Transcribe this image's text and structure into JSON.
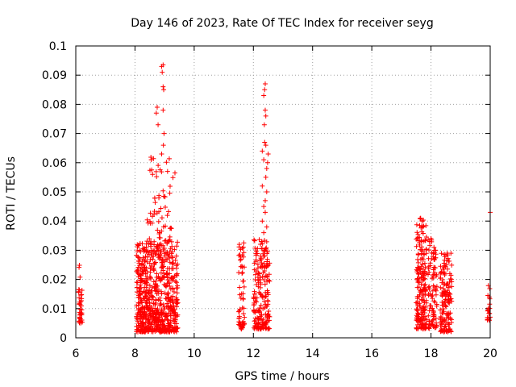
{
  "chart_data": {
    "type": "scatter",
    "title": "Day 146 of 2023, Rate Of TEC Index for receiver seyg",
    "xlabel": "GPS time / hours",
    "ylabel": "ROTI / TECUs",
    "xlim": [
      6,
      20
    ],
    "ylim": [
      0,
      0.1
    ],
    "x_ticks": [
      "6",
      "8",
      "10",
      "12",
      "14",
      "16",
      "18",
      "20"
    ],
    "y_ticks": [
      "0",
      "0.01",
      "0.02",
      "0.03",
      "0.04",
      "0.05",
      "0.06",
      "0.07",
      "0.08",
      "0.09",
      "0.1"
    ],
    "grid": true,
    "marker": "+",
    "series_color": "#ff0000",
    "clusters": [
      {
        "x_range": [
          6.1,
          6.22
        ],
        "y_range": [
          0.005,
          0.026
        ],
        "count": 40
      },
      {
        "x_range": [
          8.05,
          9.45
        ],
        "y_range": [
          0.002,
          0.033
        ],
        "count": 700
      },
      {
        "x_range": [
          8.4,
          9.3
        ],
        "y_range": [
          0.033,
          0.062
        ],
        "count": 60
      },
      {
        "x_range": [
          11.5,
          11.7
        ],
        "y_range": [
          0.003,
          0.033
        ],
        "count": 60
      },
      {
        "x_range": [
          12.0,
          12.55
        ],
        "y_range": [
          0.003,
          0.034
        ],
        "count": 200
      },
      {
        "x_range": [
          17.5,
          17.85
        ],
        "y_range": [
          0.003,
          0.041
        ],
        "count": 200
      },
      {
        "x_range": [
          17.9,
          18.2
        ],
        "y_range": [
          0.003,
          0.034
        ],
        "count": 90
      },
      {
        "x_range": [
          18.3,
          18.7
        ],
        "y_range": [
          0.002,
          0.029
        ],
        "count": 150
      },
      {
        "x_range": [
          19.9,
          20.0
        ],
        "y_range": [
          0.006,
          0.018
        ],
        "count": 20
      }
    ],
    "outliers": [
      {
        "x": 8.95,
        "y": 0.0935
      },
      {
        "x": 8.9,
        "y": 0.093
      },
      {
        "x": 8.92,
        "y": 0.091
      },
      {
        "x": 8.95,
        "y": 0.086
      },
      {
        "x": 8.97,
        "y": 0.085
      },
      {
        "x": 8.75,
        "y": 0.079
      },
      {
        "x": 8.72,
        "y": 0.077
      },
      {
        "x": 8.95,
        "y": 0.078
      },
      {
        "x": 8.78,
        "y": 0.073
      },
      {
        "x": 8.98,
        "y": 0.07
      },
      {
        "x": 8.96,
        "y": 0.066
      },
      {
        "x": 8.9,
        "y": 0.063
      },
      {
        "x": 8.55,
        "y": 0.061
      },
      {
        "x": 9.35,
        "y": 0.0565
      },
      {
        "x": 9.1,
        "y": 0.057
      },
      {
        "x": 12.4,
        "y": 0.087
      },
      {
        "x": 12.38,
        "y": 0.085
      },
      {
        "x": 12.35,
        "y": 0.083
      },
      {
        "x": 12.4,
        "y": 0.078
      },
      {
        "x": 12.42,
        "y": 0.076
      },
      {
        "x": 12.37,
        "y": 0.073
      },
      {
        "x": 12.38,
        "y": 0.067
      },
      {
        "x": 12.42,
        "y": 0.066
      },
      {
        "x": 12.3,
        "y": 0.064
      },
      {
        "x": 12.5,
        "y": 0.063
      },
      {
        "x": 12.35,
        "y": 0.061
      },
      {
        "x": 12.48,
        "y": 0.06
      },
      {
        "x": 12.45,
        "y": 0.058
      },
      {
        "x": 12.42,
        "y": 0.055
      },
      {
        "x": 12.3,
        "y": 0.052
      },
      {
        "x": 12.45,
        "y": 0.05
      },
      {
        "x": 12.4,
        "y": 0.047
      },
      {
        "x": 12.35,
        "y": 0.045
      },
      {
        "x": 12.4,
        "y": 0.043
      },
      {
        "x": 12.3,
        "y": 0.04
      },
      {
        "x": 12.45,
        "y": 0.038
      },
      {
        "x": 12.35,
        "y": 0.036
      },
      {
        "x": 12.28,
        "y": 0.033
      },
      {
        "x": 17.65,
        "y": 0.041
      },
      {
        "x": 17.7,
        "y": 0.04
      },
      {
        "x": 17.72,
        "y": 0.038
      },
      {
        "x": 17.68,
        "y": 0.033
      },
      {
        "x": 18.0,
        "y": 0.034
      },
      {
        "x": 17.95,
        "y": 0.033
      },
      {
        "x": 18.1,
        "y": 0.031
      },
      {
        "x": 18.55,
        "y": 0.029
      },
      {
        "x": 18.5,
        "y": 0.028
      },
      {
        "x": 20.0,
        "y": 0.043
      }
    ]
  }
}
